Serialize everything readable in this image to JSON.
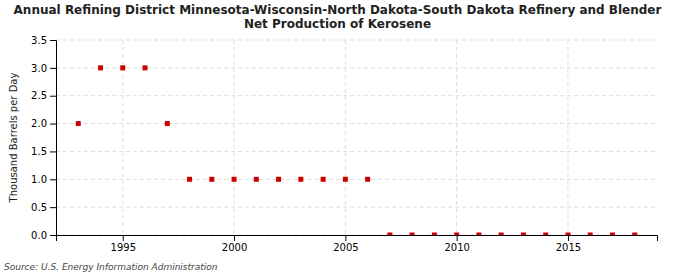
{
  "chart_data": {
    "type": "scatter",
    "title": "Annual Refining District Minnesota-Wisconsin-North Dakota-South Dakota Refinery and Blender\nNet Production of Kerosene",
    "ylabel": "Thousand Barrels per Day",
    "source": "Source: U.S. Energy Information Administration",
    "x": [
      1993,
      1994,
      1995,
      1996,
      1997,
      1998,
      1999,
      2000,
      2001,
      2002,
      2003,
      2004,
      2005,
      2006,
      2007,
      2008,
      2009,
      2010,
      2011,
      2012,
      2013,
      2014,
      2015,
      2016,
      2017,
      2018
    ],
    "values": [
      2.0,
      3.0,
      3.0,
      3.0,
      2.0,
      1.0,
      1.0,
      1.0,
      1.0,
      1.0,
      1.0,
      1.0,
      1.0,
      1.0,
      0.0,
      0.0,
      0.0,
      0.0,
      0.0,
      0.0,
      0.0,
      0.0,
      0.0,
      0.0,
      0.0,
      0.0
    ],
    "color": "#cc0000",
    "marker": "square",
    "xlim": [
      1992.0,
      2019.0
    ],
    "ylim": [
      0.0,
      3.5
    ],
    "xticks": [
      1995,
      2000,
      2005,
      2010,
      2015
    ],
    "yticks": [
      {
        "value": 0.0,
        "label": "0.0"
      },
      0.5,
      {
        "value": 1.0,
        "label": "1.0"
      },
      1.5,
      {
        "value": 2.0,
        "label": "2.0"
      },
      2.5,
      {
        "value": 3.0,
        "label": "3.0"
      },
      3.5
    ],
    "grid": true
  }
}
